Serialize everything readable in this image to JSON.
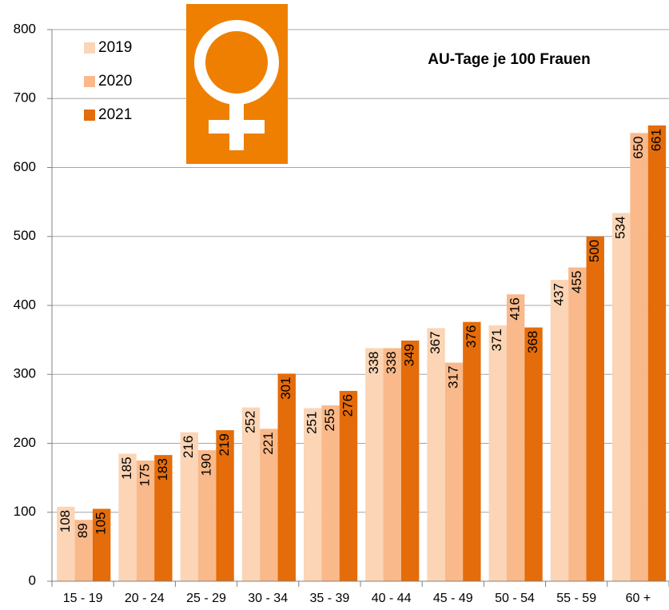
{
  "chart_data": {
    "type": "bar",
    "title": "AU-Tage je 100 Frauen",
    "categories": [
      "15 - 19",
      "20 - 24",
      "25 - 29",
      "30 - 34",
      "35 - 39",
      "40 - 44",
      "45 - 49",
      "50 - 54",
      "55 - 59",
      "60 +"
    ],
    "series": [
      {
        "name": "2019",
        "color": "#fbd5b5",
        "values": [
          108,
          185,
          216,
          252,
          251,
          338,
          367,
          371,
          437,
          534
        ]
      },
      {
        "name": "2020",
        "color": "#f9b98a",
        "values": [
          89,
          175,
          190,
          221,
          255,
          338,
          317,
          416,
          455,
          650
        ]
      },
      {
        "name": "2021",
        "color": "#e46c0a",
        "values": [
          105,
          183,
          219,
          301,
          276,
          349,
          376,
          368,
          500,
          661
        ]
      }
    ],
    "ylim": [
      0,
      800
    ],
    "yticks": [
      0,
      100,
      200,
      300,
      400,
      500,
      600,
      700,
      800
    ],
    "grid": true,
    "legend": "upper left"
  }
}
